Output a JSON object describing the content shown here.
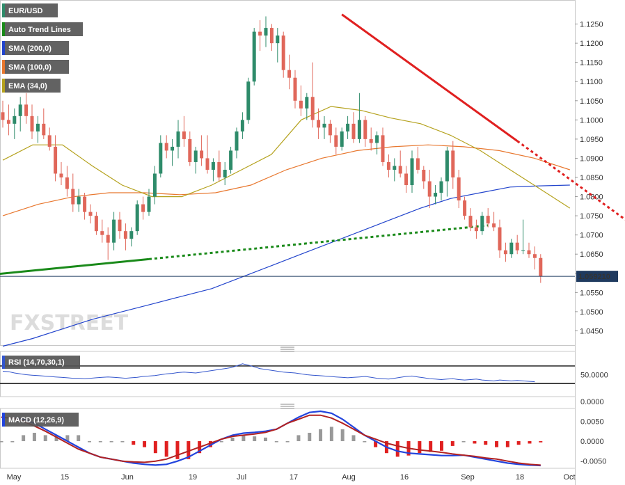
{
  "chart_data": {
    "type": "candlestick",
    "symbol": "EUR/USD",
    "indicators": [
      "Auto Trend Lines",
      "SMA (200,0)",
      "SMA (100,0)",
      "EMA (34,0)"
    ],
    "indicator_colors": [
      "#1a8a1a",
      "#2244cc",
      "#e8772e",
      "#b5a21e"
    ],
    "last_price": "1.059210",
    "price_axis": {
      "min": 1.04,
      "max": 1.13,
      "ticks": [
        "1.1250",
        "1.1200",
        "1.1150",
        "1.1100",
        "1.1050",
        "1.1000",
        "1.0950",
        "1.0900",
        "1.0850",
        "1.0800",
        "1.0750",
        "1.0700",
        "1.0650",
        "1.0600",
        "1.0550",
        "1.0500",
        "1.0450"
      ]
    },
    "time_axis": [
      "May",
      "15",
      "Jun",
      "19",
      "Jul",
      "17",
      "Aug",
      "16",
      "Sep",
      "18",
      "Oct"
    ],
    "candles": [
      {
        "o": 1.102,
        "h": 1.105,
        "l": 1.098,
        "c": 1.1
      },
      {
        "o": 1.1,
        "h": 1.104,
        "l": 1.096,
        "c": 1.099
      },
      {
        "o": 1.099,
        "h": 1.103,
        "l": 1.095,
        "c": 1.101
      },
      {
        "o": 1.101,
        "h": 1.106,
        "l": 1.097,
        "c": 1.104
      },
      {
        "o": 1.104,
        "h": 1.107,
        "l": 1.099,
        "c": 1.101
      },
      {
        "o": 1.101,
        "h": 1.104,
        "l": 1.095,
        "c": 1.097
      },
      {
        "o": 1.097,
        "h": 1.101,
        "l": 1.094,
        "c": 1.099
      },
      {
        "o": 1.099,
        "h": 1.103,
        "l": 1.095,
        "c": 1.096
      },
      {
        "o": 1.096,
        "h": 1.098,
        "l": 1.092,
        "c": 1.093
      },
      {
        "o": 1.093,
        "h": 1.096,
        "l": 1.084,
        "c": 1.086
      },
      {
        "o": 1.086,
        "h": 1.089,
        "l": 1.083,
        "c": 1.085
      },
      {
        "o": 1.085,
        "h": 1.088,
        "l": 1.08,
        "c": 1.082
      },
      {
        "o": 1.082,
        "h": 1.086,
        "l": 1.076,
        "c": 1.078
      },
      {
        "o": 1.078,
        "h": 1.082,
        "l": 1.076,
        "c": 1.08
      },
      {
        "o": 1.08,
        "h": 1.081,
        "l": 1.074,
        "c": 1.076
      },
      {
        "o": 1.076,
        "h": 1.078,
        "l": 1.073,
        "c": 1.075
      },
      {
        "o": 1.075,
        "h": 1.076,
        "l": 1.07,
        "c": 1.071
      },
      {
        "o": 1.071,
        "h": 1.074,
        "l": 1.068,
        "c": 1.07
      },
      {
        "o": 1.07,
        "h": 1.072,
        "l": 1.0635,
        "c": 1.068
      },
      {
        "o": 1.068,
        "h": 1.076,
        "l": 1.066,
        "c": 1.074
      },
      {
        "o": 1.074,
        "h": 1.076,
        "l": 1.069,
        "c": 1.071
      },
      {
        "o": 1.071,
        "h": 1.073,
        "l": 1.066,
        "c": 1.069
      },
      {
        "o": 1.069,
        "h": 1.072,
        "l": 1.067,
        "c": 1.071
      },
      {
        "o": 1.071,
        "h": 1.079,
        "l": 1.07,
        "c": 1.078
      },
      {
        "o": 1.078,
        "h": 1.08,
        "l": 1.074,
        "c": 1.076
      },
      {
        "o": 1.076,
        "h": 1.082,
        "l": 1.075,
        "c": 1.08
      },
      {
        "o": 1.08,
        "h": 1.088,
        "l": 1.078,
        "c": 1.086
      },
      {
        "o": 1.086,
        "h": 1.096,
        "l": 1.085,
        "c": 1.094
      },
      {
        "o": 1.094,
        "h": 1.096,
        "l": 1.09,
        "c": 1.092
      },
      {
        "o": 1.092,
        "h": 1.095,
        "l": 1.088,
        "c": 1.093
      },
      {
        "o": 1.093,
        "h": 1.1,
        "l": 1.09,
        "c": 1.097
      },
      {
        "o": 1.097,
        "h": 1.101,
        "l": 1.093,
        "c": 1.095
      },
      {
        "o": 1.095,
        "h": 1.097,
        "l": 1.088,
        "c": 1.089
      },
      {
        "o": 1.089,
        "h": 1.093,
        "l": 1.086,
        "c": 1.092
      },
      {
        "o": 1.092,
        "h": 1.096,
        "l": 1.088,
        "c": 1.09
      },
      {
        "o": 1.09,
        "h": 1.096,
        "l": 1.086,
        "c": 1.087
      },
      {
        "o": 1.087,
        "h": 1.09,
        "l": 1.084,
        "c": 1.089
      },
      {
        "o": 1.089,
        "h": 1.092,
        "l": 1.084,
        "c": 1.085
      },
      {
        "o": 1.085,
        "h": 1.089,
        "l": 1.083,
        "c": 1.087
      },
      {
        "o": 1.087,
        "h": 1.093,
        "l": 1.086,
        "c": 1.092
      },
      {
        "o": 1.092,
        "h": 1.098,
        "l": 1.09,
        "c": 1.097
      },
      {
        "o": 1.097,
        "h": 1.102,
        "l": 1.095,
        "c": 1.1
      },
      {
        "o": 1.1,
        "h": 1.111,
        "l": 1.099,
        "c": 1.11
      },
      {
        "o": 1.11,
        "h": 1.124,
        "l": 1.109,
        "c": 1.123
      },
      {
        "o": 1.123,
        "h": 1.126,
        "l": 1.118,
        "c": 1.122
      },
      {
        "o": 1.122,
        "h": 1.127,
        "l": 1.119,
        "c": 1.124
      },
      {
        "o": 1.124,
        "h": 1.125,
        "l": 1.118,
        "c": 1.12
      },
      {
        "o": 1.12,
        "h": 1.124,
        "l": 1.115,
        "c": 1.122
      },
      {
        "o": 1.122,
        "h": 1.123,
        "l": 1.111,
        "c": 1.113
      },
      {
        "o": 1.113,
        "h": 1.117,
        "l": 1.108,
        "c": 1.111
      },
      {
        "o": 1.111,
        "h": 1.113,
        "l": 1.103,
        "c": 1.105
      },
      {
        "o": 1.105,
        "h": 1.109,
        "l": 1.101,
        "c": 1.103
      },
      {
        "o": 1.103,
        "h": 1.107,
        "l": 1.1,
        "c": 1.106
      },
      {
        "o": 1.106,
        "h": 1.115,
        "l": 1.098,
        "c": 1.1
      },
      {
        "o": 1.1,
        "h": 1.103,
        "l": 1.095,
        "c": 1.098
      },
      {
        "o": 1.098,
        "h": 1.101,
        "l": 1.095,
        "c": 1.099
      },
      {
        "o": 1.099,
        "h": 1.1,
        "l": 1.094,
        "c": 1.096
      },
      {
        "o": 1.096,
        "h": 1.098,
        "l": 1.091,
        "c": 1.093
      },
      {
        "o": 1.093,
        "h": 1.098,
        "l": 1.092,
        "c": 1.097
      },
      {
        "o": 1.097,
        "h": 1.101,
        "l": 1.095,
        "c": 1.099
      },
      {
        "o": 1.099,
        "h": 1.102,
        "l": 1.094,
        "c": 1.095
      },
      {
        "o": 1.095,
        "h": 1.107,
        "l": 1.094,
        "c": 1.1
      },
      {
        "o": 1.1,
        "h": 1.101,
        "l": 1.093,
        "c": 1.095
      },
      {
        "o": 1.095,
        "h": 1.098,
        "l": 1.092,
        "c": 1.094
      },
      {
        "o": 1.094,
        "h": 1.097,
        "l": 1.091,
        "c": 1.096
      },
      {
        "o": 1.096,
        "h": 1.098,
        "l": 1.088,
        "c": 1.089
      },
      {
        "o": 1.089,
        "h": 1.091,
        "l": 1.085,
        "c": 1.087
      },
      {
        "o": 1.087,
        "h": 1.09,
        "l": 1.084,
        "c": 1.088
      },
      {
        "o": 1.088,
        "h": 1.092,
        "l": 1.085,
        "c": 1.086
      },
      {
        "o": 1.086,
        "h": 1.088,
        "l": 1.081,
        "c": 1.083
      },
      {
        "o": 1.083,
        "h": 1.092,
        "l": 1.081,
        "c": 1.09
      },
      {
        "o": 1.09,
        "h": 1.093,
        "l": 1.086,
        "c": 1.087
      },
      {
        "o": 1.087,
        "h": 1.088,
        "l": 1.082,
        "c": 1.084
      },
      {
        "o": 1.084,
        "h": 1.087,
        "l": 1.077,
        "c": 1.08
      },
      {
        "o": 1.08,
        "h": 1.083,
        "l": 1.078,
        "c": 1.081
      },
      {
        "o": 1.081,
        "h": 1.085,
        "l": 1.079,
        "c": 1.084
      },
      {
        "o": 1.084,
        "h": 1.093,
        "l": 1.08,
        "c": 1.092
      },
      {
        "o": 1.092,
        "h": 1.0945,
        "l": 1.082,
        "c": 1.085
      },
      {
        "o": 1.085,
        "h": 1.087,
        "l": 1.077,
        "c": 1.079
      },
      {
        "o": 1.079,
        "h": 1.08,
        "l": 1.074,
        "c": 1.075
      },
      {
        "o": 1.075,
        "h": 1.077,
        "l": 1.071,
        "c": 1.072
      },
      {
        "o": 1.072,
        "h": 1.074,
        "l": 1.069,
        "c": 1.071
      },
      {
        "o": 1.071,
        "h": 1.076,
        "l": 1.07,
        "c": 1.075
      },
      {
        "o": 1.075,
        "h": 1.077,
        "l": 1.072,
        "c": 1.073
      },
      {
        "o": 1.073,
        "h": 1.076,
        "l": 1.071,
        "c": 1.072
      },
      {
        "o": 1.072,
        "h": 1.074,
        "l": 1.064,
        "c": 1.066
      },
      {
        "o": 1.066,
        "h": 1.068,
        "l": 1.063,
        "c": 1.065
      },
      {
        "o": 1.065,
        "h": 1.069,
        "l": 1.064,
        "c": 1.068
      },
      {
        "o": 1.068,
        "h": 1.07,
        "l": 1.065,
        "c": 1.066
      },
      {
        "o": 1.066,
        "h": 1.074,
        "l": 1.065,
        "c": 1.066
      },
      {
        "o": 1.066,
        "h": 1.068,
        "l": 1.064,
        "c": 1.065
      },
      {
        "o": 1.065,
        "h": 1.067,
        "l": 1.061,
        "c": 1.064
      },
      {
        "o": 1.064,
        "h": 1.065,
        "l": 1.0575,
        "c": 1.0592
      }
    ],
    "sma200": [
      1.041,
      1.043,
      1.0455,
      1.048,
      1.05,
      1.052,
      1.054,
      1.056,
      1.059,
      1.062,
      1.065,
      1.068,
      1.071,
      1.074,
      1.077,
      1.0795,
      1.081,
      1.0825,
      1.0828,
      1.083
    ],
    "sma100": [
      1.075,
      1.078,
      1.08,
      1.081,
      1.081,
      1.0805,
      1.081,
      1.083,
      1.087,
      1.09,
      1.092,
      1.093,
      1.0935,
      1.093,
      1.092,
      1.09,
      1.087
    ],
    "ema34": [
      1.0895,
      1.0935,
      1.0935,
      1.088,
      1.083,
      1.08,
      1.08,
      1.083,
      1.087,
      1.091,
      1.1,
      1.1035,
      1.1025,
      1.1005,
      1.099,
      1.096,
      1.092,
      1.087,
      1.082,
      1.077
    ],
    "trend_support_solid": [
      {
        "i": -3,
        "p": 1.0595
      },
      {
        "i": 25,
        "p": 1.0637
      }
    ],
    "trend_support_dotted": [
      {
        "i": 25,
        "p": 1.0637
      },
      {
        "i": 83,
        "p": 1.0725
      }
    ],
    "trend_resistance_solid": [
      {
        "i": 58,
        "p": 1.1275
      },
      {
        "i": 88,
        "p": 1.0945
      }
    ],
    "trend_resistance_dotted": [
      {
        "i": 88,
        "p": 1.0945
      },
      {
        "i": 111,
        "p": 1.069
      }
    ],
    "rsi": {
      "label": "RSI (14,70,30,1)",
      "axis_ticks": [
        "50.0000",
        "0.0000"
      ],
      "levels": [
        70,
        30
      ],
      "values": [
        58,
        57,
        54,
        52,
        50,
        49,
        48,
        47,
        46,
        45,
        44,
        43,
        42,
        42,
        41,
        42,
        43,
        44,
        45,
        44,
        43,
        42,
        43,
        44,
        46,
        47,
        48,
        50,
        52,
        53,
        55,
        56,
        55,
        54,
        56,
        58,
        60,
        62,
        64,
        66,
        70,
        75,
        72,
        68,
        64,
        62,
        60,
        58,
        56,
        55,
        54,
        52,
        50,
        49,
        48,
        47,
        46,
        45,
        44,
        43,
        44,
        45,
        46,
        44,
        42,
        41,
        40,
        42,
        44,
        46,
        47,
        45,
        43,
        41,
        40,
        39,
        40,
        41,
        39,
        38,
        39,
        40,
        38,
        37,
        36,
        38,
        37,
        36,
        37,
        36,
        35,
        34
      ]
    },
    "macd": {
      "label": "MACD (12,26,9)",
      "axis_ticks": [
        "0.0050",
        "0.0000",
        "-0.0050"
      ],
      "min": -0.0068,
      "max": 0.0082,
      "macd": [
        0.006,
        0.0058,
        0.0055,
        0.0045,
        0.003,
        0.0015,
        0.0,
        -0.0015,
        -0.003,
        -0.004,
        -0.0045,
        -0.005,
        -0.0055,
        -0.0058,
        -0.006,
        -0.0058,
        -0.005,
        -0.004,
        -0.0025,
        -0.001,
        0.0005,
        0.0015,
        0.002,
        0.0022,
        0.0025,
        0.003,
        0.0045,
        0.006,
        0.0072,
        0.0075,
        0.007,
        0.0055,
        0.0035,
        0.0015,
        0.0,
        -0.0015,
        -0.0025,
        -0.003,
        -0.0032,
        -0.0034,
        -0.0036,
        -0.0036,
        -0.0035,
        -0.004,
        -0.0045,
        -0.005,
        -0.0055,
        -0.0058,
        -0.006,
        -0.0061
      ],
      "signal": [
        0.006,
        0.0058,
        0.005,
        0.0038,
        0.0025,
        0.001,
        -0.0005,
        -0.002,
        -0.003,
        -0.004,
        -0.0045,
        -0.005,
        -0.0052,
        -0.0053,
        -0.005,
        -0.0045,
        -0.0035,
        -0.0025,
        -0.0015,
        -0.0005,
        0.0005,
        0.0012,
        0.0015,
        0.0018,
        0.0022,
        0.003,
        0.0045,
        0.0055,
        0.0065,
        0.0065,
        0.0058,
        0.0045,
        0.003,
        0.0015,
        0.0005,
        -0.0005,
        -0.0012,
        -0.0018,
        -0.0022,
        -0.0025,
        -0.0028,
        -0.0032,
        -0.0035,
        -0.0038,
        -0.0042,
        -0.0045,
        -0.005,
        -0.0055,
        -0.0058,
        -0.006
      ]
    }
  },
  "watermark": "FXSTREET"
}
